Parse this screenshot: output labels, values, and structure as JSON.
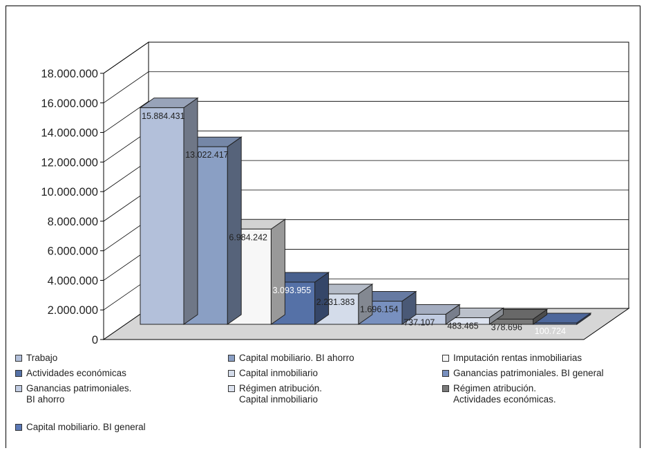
{
  "colors": {
    "trabajo": "#b3c0da",
    "capital_mob_ahorro": "#8a9fc4",
    "imputacion": "#f7f7f7",
    "actividades": "#5571a7",
    "capital_inmobiliario": "#d4dcea",
    "ganancias_general": "#7890bf",
    "ganancias_ahorro": "#c1cce2",
    "regimen_capital": "#dde3ef",
    "regimen_actividades": "#7a7a7a",
    "capital_mob_general": "#5b79b6",
    "floor": "#d6d6d6"
  },
  "chart_data": {
    "type": "bar",
    "subtype": "3d-column",
    "categories": [
      "Trabajo",
      "Capital  mobiliario. BI ahorro",
      "Imputación rentas inmobiliarias",
      "Actividades económicas",
      "Capital inmobiliario",
      "Ganancias patrimoniales. BI general",
      "Ganancias patrimoniales.\nBI ahorro",
      "Régimen atribución.\nCapital inmobiliario",
      "Régimen atribución.\nActividades económicas.",
      "Capital mobiliario. BI general"
    ],
    "values": [
      15884431,
      13022417,
      6984242,
      3093955,
      2231383,
      1696154,
      737107,
      483465,
      378696,
      100724
    ],
    "value_labels": [
      "15.884.431",
      "13.022.417",
      "6.984.242",
      "3.093.955",
      "2.231.383",
      "1.696.154",
      "737.107",
      "483.465",
      "378.696",
      "100.724"
    ],
    "colors": [
      "trabajo",
      "capital_mob_ahorro",
      "imputacion",
      "actividades",
      "capital_inmobiliario",
      "ganancias_general",
      "ganancias_ahorro",
      "regimen_capital",
      "regimen_actividades",
      "capital_mob_general"
    ],
    "label_color": [
      "dark",
      "dark",
      "dark",
      "light",
      "dark",
      "dark",
      "dark",
      "dark",
      "dark",
      "light"
    ],
    "ylim": [
      0,
      18000000
    ],
    "yticks": [
      0,
      2000000,
      4000000,
      6000000,
      8000000,
      10000000,
      12000000,
      14000000,
      16000000,
      18000000
    ],
    "ytick_labels": [
      "0",
      "2.000.000",
      "4.000.000",
      "6.000.000",
      "8.000.000",
      "10.000.000",
      "12.000.000",
      "14.000.000",
      "16.000.000",
      "18.000.000"
    ],
    "grid": true,
    "legend_position": "bottom",
    "title": "",
    "xlabel": "",
    "ylabel": ""
  }
}
